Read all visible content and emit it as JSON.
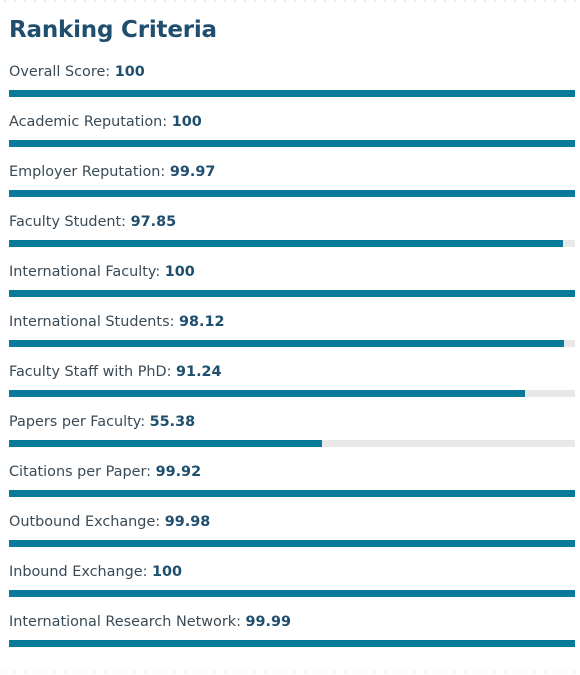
{
  "title": "Ranking Criteria",
  "colors": {
    "title": "#1f4e6e",
    "bar_fill": "#0a7a9a",
    "bar_track": "#e8e8e8"
  },
  "criteria": [
    {
      "label": "Overall Score:",
      "value": "100",
      "score": 100
    },
    {
      "label": "Academic Reputation:",
      "value": "100",
      "score": 100
    },
    {
      "label": "Employer Reputation:",
      "value": "99.97",
      "score": 99.97
    },
    {
      "label": "Faculty Student:",
      "value": "97.85",
      "score": 97.85
    },
    {
      "label": "International Faculty:",
      "value": "100",
      "score": 100
    },
    {
      "label": "International Students:",
      "value": "98.12",
      "score": 98.12
    },
    {
      "label": "Faculty Staff with PhD:",
      "value": "91.24",
      "score": 91.24
    },
    {
      "label": "Papers per Faculty:",
      "value": "55.38",
      "score": 55.38
    },
    {
      "label": "Citations per Paper:",
      "value": "99.92",
      "score": 99.92
    },
    {
      "label": "Outbound Exchange:",
      "value": "99.98",
      "score": 99.98
    },
    {
      "label": "Inbound Exchange:",
      "value": "100",
      "score": 100
    },
    {
      "label": "International Research Network:",
      "value": "99.99",
      "score": 99.99
    }
  ]
}
